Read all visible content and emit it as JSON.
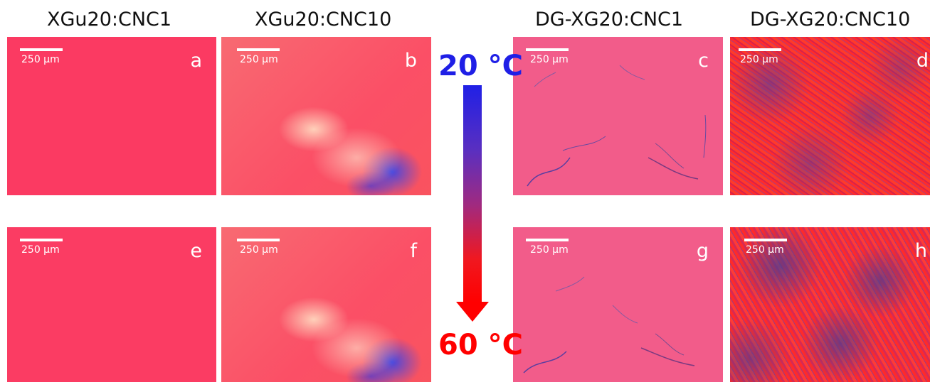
{
  "columns": [
    {
      "title": "XGu20:CNC1"
    },
    {
      "title": "XGu20:CNC10"
    },
    {
      "title": "DG-XG20:CNC1"
    },
    {
      "title": "DG-XG20:CNC10"
    }
  ],
  "scale_label": "250 μm",
  "panels": [
    {
      "letter": "a"
    },
    {
      "letter": "b"
    },
    {
      "letter": "c"
    },
    {
      "letter": "d"
    },
    {
      "letter": "e"
    },
    {
      "letter": "f"
    },
    {
      "letter": "g"
    },
    {
      "letter": "h"
    }
  ],
  "temperature": {
    "start": "20 °C",
    "end": "60 °C",
    "start_color": "#1f1fe6",
    "end_color": "#ff0000"
  }
}
